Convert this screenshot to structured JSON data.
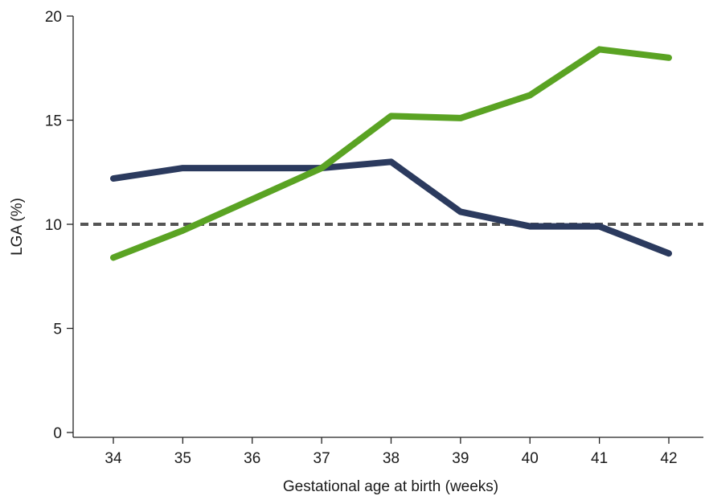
{
  "chart_data": {
    "type": "line",
    "xlabel": "Gestational age at birth (weeks)",
    "ylabel": "LGA (%)",
    "x": [
      34,
      35,
      36,
      37,
      38,
      39,
      40,
      41,
      42
    ],
    "xlim": [
      33.4,
      42.5
    ],
    "ylim": [
      0,
      20
    ],
    "yticks": [
      0,
      5,
      10,
      15,
      20
    ],
    "grid": false,
    "series": [
      {
        "color": "#2b3a5e",
        "values": [
          12.2,
          12.7,
          12.7,
          12.7,
          13.0,
          10.6,
          9.9,
          9.9,
          8.6
        ]
      },
      {
        "color": "#5aa323",
        "values": [
          8.4,
          9.7,
          11.2,
          12.7,
          15.2,
          15.1,
          16.2,
          18.4,
          18.0
        ]
      }
    ],
    "reference_line": {
      "y": 10,
      "style": "dashed",
      "color": "#555555"
    }
  }
}
